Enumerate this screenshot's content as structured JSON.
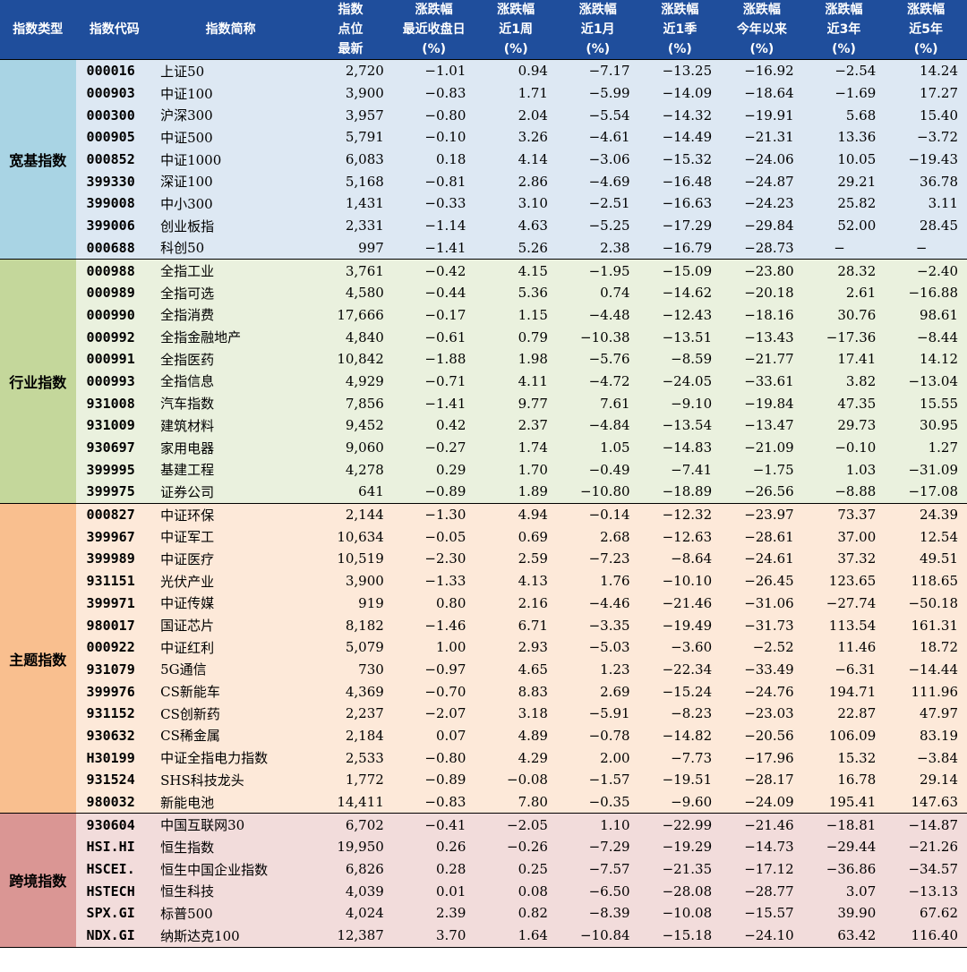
{
  "header": {
    "col_type": "指数类型",
    "col_code": "指数代码",
    "col_name": "指数简称",
    "pt_1": "指数",
    "pt_2": "点位",
    "pt_3": "最新",
    "d1_1": "涨跌幅",
    "d1_2": "最近收盘日",
    "d1_3": "(%)",
    "w1_1": "涨跌幅",
    "w1_2": "近1周",
    "w1_3": "(%)",
    "m1_1": "涨跌幅",
    "m1_2": "近1月",
    "m1_3": "(%)",
    "q1_1": "涨跌幅",
    "q1_2": "近1季",
    "q1_3": "(%)",
    "ytd_1": "涨跌幅",
    "ytd_2": "今年以来",
    "ytd_3": "(%)",
    "y3_1": "涨跌幅",
    "y3_2": "近3年",
    "y3_3": "(%)",
    "y5_1": "涨跌幅",
    "y5_2": "近5年",
    "y5_3": "(%)"
  },
  "groups": [
    {
      "type": "宽基指数",
      "rows": [
        [
          "000016",
          "上证50",
          "2,720",
          "−1.01",
          "0.94",
          "−7.17",
          "−13.25",
          "−16.92",
          "−2.54",
          "14.24"
        ],
        [
          "000903",
          "中证100",
          "3,900",
          "−0.83",
          "1.71",
          "−5.99",
          "−14.09",
          "−18.64",
          "−1.69",
          "17.27"
        ],
        [
          "000300",
          "沪深300",
          "3,957",
          "−0.80",
          "2.04",
          "−5.54",
          "−14.32",
          "−19.91",
          "5.68",
          "15.40"
        ],
        [
          "000905",
          "中证500",
          "5,791",
          "−0.10",
          "3.26",
          "−4.61",
          "−14.49",
          "−21.31",
          "13.36",
          "−3.72"
        ],
        [
          "000852",
          "中证1000",
          "6,083",
          "0.18",
          "4.14",
          "−3.06",
          "−15.32",
          "−24.06",
          "10.05",
          "−19.43"
        ],
        [
          "399330",
          "深证100",
          "5,168",
          "−0.81",
          "2.86",
          "−4.69",
          "−16.48",
          "−24.87",
          "29.21",
          "36.78"
        ],
        [
          "399008",
          "中小300",
          "1,431",
          "−0.33",
          "3.10",
          "−2.51",
          "−16.63",
          "−24.23",
          "25.82",
          "3.11"
        ],
        [
          "399006",
          "创业板指",
          "2,331",
          "−1.14",
          "4.63",
          "−5.25",
          "−17.29",
          "−29.84",
          "52.00",
          "28.45"
        ],
        [
          "000688",
          "科创50",
          "997",
          "−1.41",
          "5.26",
          "2.38",
          "−16.79",
          "−28.73",
          "−",
          "−"
        ]
      ]
    },
    {
      "type": "行业指数",
      "rows": [
        [
          "000988",
          "全指工业",
          "3,761",
          "−0.42",
          "4.15",
          "−1.95",
          "−15.09",
          "−23.80",
          "28.32",
          "−2.40"
        ],
        [
          "000989",
          "全指可选",
          "4,580",
          "−0.44",
          "5.36",
          "0.74",
          "−14.62",
          "−20.18",
          "2.61",
          "−16.88"
        ],
        [
          "000990",
          "全指消费",
          "17,666",
          "−0.17",
          "1.15",
          "−4.48",
          "−12.43",
          "−18.16",
          "30.76",
          "98.61"
        ],
        [
          "000992",
          "全指金融地产",
          "4,840",
          "−0.61",
          "0.79",
          "−10.38",
          "−13.51",
          "−13.43",
          "−17.36",
          "−8.44"
        ],
        [
          "000991",
          "全指医药",
          "10,842",
          "−1.88",
          "1.98",
          "−5.76",
          "−8.59",
          "−21.77",
          "17.41",
          "14.12"
        ],
        [
          "000993",
          "全指信息",
          "4,929",
          "−0.71",
          "4.11",
          "−4.72",
          "−24.05",
          "−33.61",
          "3.82",
          "−13.04"
        ],
        [
          "931008",
          "汽车指数",
          "7,856",
          "−1.41",
          "9.77",
          "7.61",
          "−9.10",
          "−19.84",
          "47.35",
          "15.55"
        ],
        [
          "931009",
          "建筑材料",
          "9,452",
          "0.42",
          "2.37",
          "−4.84",
          "−13.54",
          "−13.47",
          "29.73",
          "30.95"
        ],
        [
          "930697",
          "家用电器",
          "9,060",
          "−0.27",
          "1.74",
          "1.05",
          "−14.83",
          "−21.09",
          "−0.10",
          "1.27"
        ],
        [
          "399995",
          "基建工程",
          "4,278",
          "0.29",
          "1.70",
          "−0.49",
          "−7.41",
          "−1.75",
          "1.03",
          "−31.09"
        ],
        [
          "399975",
          "证券公司",
          "641",
          "−0.89",
          "1.89",
          "−10.80",
          "−18.89",
          "−26.56",
          "−8.88",
          "−17.08"
        ]
      ]
    },
    {
      "type": "主题指数",
      "rows": [
        [
          "000827",
          "中证环保",
          "2,144",
          "−1.30",
          "4.94",
          "−0.14",
          "−12.32",
          "−23.97",
          "73.37",
          "24.39"
        ],
        [
          "399967",
          "中证军工",
          "10,634",
          "−0.05",
          "0.69",
          "2.68",
          "−12.63",
          "−28.61",
          "37.00",
          "12.54"
        ],
        [
          "399989",
          "中证医疗",
          "10,519",
          "−2.30",
          "2.59",
          "−7.23",
          "−8.64",
          "−24.61",
          "37.32",
          "49.51"
        ],
        [
          "931151",
          "光伏产业",
          "3,900",
          "−1.33",
          "4.13",
          "1.76",
          "−10.10",
          "−26.45",
          "123.65",
          "118.65"
        ],
        [
          "399971",
          "中证传媒",
          "919",
          "0.80",
          "2.16",
          "−4.46",
          "−21.46",
          "−31.06",
          "−27.74",
          "−50.18"
        ],
        [
          "980017",
          "国证芯片",
          "8,182",
          "−1.46",
          "6.71",
          "−3.35",
          "−19.49",
          "−31.73",
          "113.54",
          "161.31"
        ],
        [
          "000922",
          "中证红利",
          "5,079",
          "1.00",
          "2.93",
          "−5.03",
          "−3.60",
          "−2.52",
          "11.46",
          "18.72"
        ],
        [
          "931079",
          "5G通信",
          "730",
          "−0.97",
          "4.65",
          "1.23",
          "−22.34",
          "−33.49",
          "−6.31",
          "−14.44"
        ],
        [
          "399976",
          "CS新能车",
          "4,369",
          "−0.70",
          "8.83",
          "2.69",
          "−15.24",
          "−24.76",
          "194.71",
          "111.96"
        ],
        [
          "931152",
          "CS创新药",
          "2,237",
          "−2.07",
          "3.18",
          "−5.91",
          "−8.23",
          "−23.03",
          "22.87",
          "47.97"
        ],
        [
          "930632",
          "CS稀金属",
          "2,184",
          "0.07",
          "4.89",
          "−0.78",
          "−14.82",
          "−20.56",
          "106.09",
          "83.19"
        ],
        [
          "H30199",
          "中证全指电力指数",
          "2,533",
          "−0.80",
          "4.29",
          "2.00",
          "−7.73",
          "−17.96",
          "15.32",
          "−3.84"
        ],
        [
          "931524",
          "SHS科技龙头",
          "1,772",
          "−0.89",
          "−0.08",
          "−1.57",
          "−19.51",
          "−28.17",
          "16.78",
          "29.14"
        ],
        [
          "980032",
          "新能电池",
          "14,411",
          "−0.83",
          "7.80",
          "−0.35",
          "−9.60",
          "−24.09",
          "195.41",
          "147.63"
        ]
      ]
    },
    {
      "type": "跨境指数",
      "rows": [
        [
          "930604",
          "中国互联网30",
          "6,702",
          "−0.41",
          "−2.05",
          "1.10",
          "−22.99",
          "−21.46",
          "−18.81",
          "−14.87"
        ],
        [
          "HSI.HI",
          "恒生指数",
          "19,950",
          "0.26",
          "−0.26",
          "−7.29",
          "−19.29",
          "−14.73",
          "−29.44",
          "−21.26"
        ],
        [
          "HSCEI.",
          "恒生中国企业指数",
          "6,826",
          "0.28",
          "0.25",
          "−7.57",
          "−21.35",
          "−17.12",
          "−36.86",
          "−34.57"
        ],
        [
          "HSTECH",
          "恒生科技",
          "4,039",
          "0.01",
          "0.08",
          "−6.50",
          "−28.08",
          "−28.77",
          "3.07",
          "−13.13"
        ],
        [
          "SPX.GI",
          "标普500",
          "4,024",
          "2.39",
          "0.82",
          "−8.39",
          "−10.08",
          "−15.57",
          "39.90",
          "67.62"
        ],
        [
          "NDX.GI",
          "纳斯达克100",
          "12,387",
          "3.70",
          "1.64",
          "−10.84",
          "−15.18",
          "−24.10",
          "63.42",
          "116.40"
        ]
      ]
    }
  ]
}
